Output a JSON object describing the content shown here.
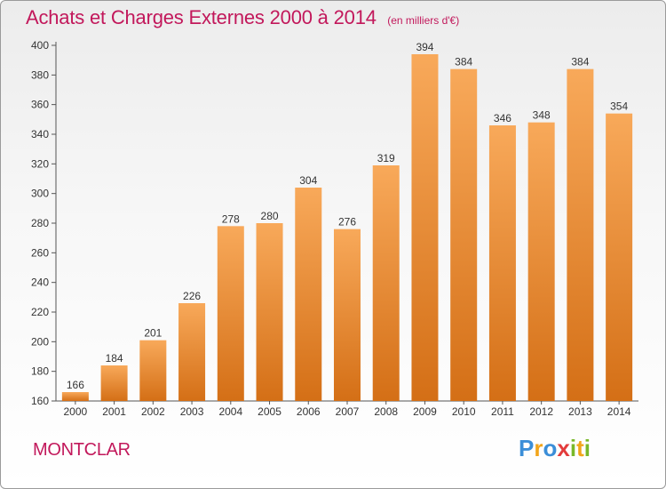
{
  "header": {
    "title": "Achats et Charges Externes 2000 à 2014",
    "unit": "(en milliers d'€)"
  },
  "footer": {
    "location": "MONTCLAR",
    "brand": "Proxiti"
  },
  "colors": {
    "title": "#c2185b",
    "bar_light": "#f8a95a",
    "bar_dark": "#d46f16"
  },
  "chart_data": {
    "type": "bar",
    "title": "Achats et Charges Externes 2000 à 2014",
    "subtitle": "(en milliers d'€)",
    "categories": [
      "2000",
      "2001",
      "2002",
      "2003",
      "2004",
      "2005",
      "2006",
      "2007",
      "2008",
      "2009",
      "2010",
      "2011",
      "2012",
      "2013",
      "2014"
    ],
    "values": [
      166,
      184,
      201,
      226,
      278,
      280,
      304,
      276,
      319,
      394,
      384,
      346,
      348,
      384,
      354
    ],
    "ylim": [
      160,
      400
    ],
    "yticks": [
      160,
      180,
      200,
      220,
      240,
      260,
      280,
      300,
      320,
      340,
      360,
      380,
      400
    ],
    "grid": false,
    "data_labels": true
  }
}
